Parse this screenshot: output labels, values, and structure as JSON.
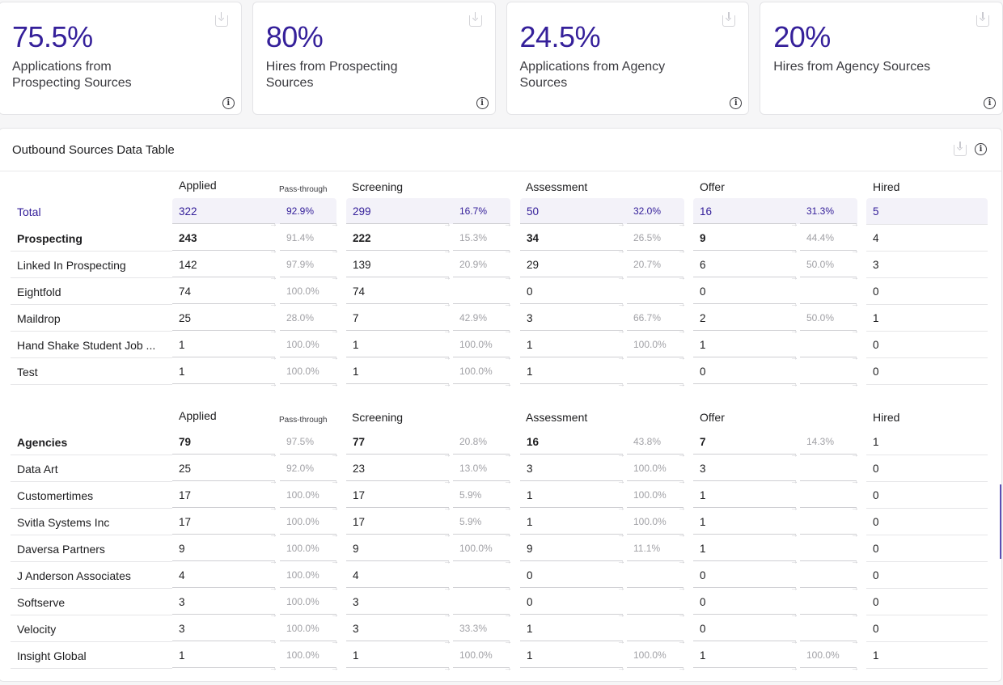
{
  "kpi_cards": [
    {
      "value": "75.5%",
      "label": "Applications from Prospecting Sources",
      "download_icon": "download-icon",
      "info_icon": "info-icon"
    },
    {
      "value": "80%",
      "label": "Hires from Prospecting Sources",
      "download_icon": "download-icon",
      "info_icon": "info-icon"
    },
    {
      "value": "24.5%",
      "label": "Applications from Agency Sources",
      "download_icon": "download-icon",
      "info_icon": "info-icon"
    },
    {
      "value": "20%",
      "label": "Hires from Agency Sources",
      "download_icon": "download-icon",
      "info_icon": "info-icon"
    }
  ],
  "colors": {
    "accent": "#35209a",
    "total_bg": "#f3f2f9",
    "muted": "#a1a1a6"
  },
  "table": {
    "title": "Outbound Sources Data Table",
    "headers": {
      "applied": "Applied",
      "pass_through": "Pass-through",
      "screening": "Screening",
      "assessment": "Assessment",
      "offer": "Offer",
      "hired": "Hired"
    },
    "sections": [
      {
        "rows": [
          {
            "name": "Total",
            "type": "total",
            "applied": "322",
            "p1": "92.9%",
            "screening": "299",
            "p2": "16.7%",
            "assessment": "50",
            "p3": "32.0%",
            "offer": "16",
            "p4": "31.3%",
            "hired": "5"
          },
          {
            "name": "Prospecting",
            "type": "group",
            "applied": "243",
            "p1": "91.4%",
            "screening": "222",
            "p2": "15.3%",
            "assessment": "34",
            "p3": "26.5%",
            "offer": "9",
            "p4": "44.4%",
            "hired": "4"
          },
          {
            "name": "Linked In Prospecting",
            "type": "item",
            "applied": "142",
            "p1": "97.9%",
            "screening": "139",
            "p2": "20.9%",
            "assessment": "29",
            "p3": "20.7%",
            "offer": "6",
            "p4": "50.0%",
            "hired": "3"
          },
          {
            "name": "Eightfold",
            "type": "item",
            "applied": "74",
            "p1": "100.0%",
            "screening": "74",
            "p2": "",
            "assessment": "0",
            "p3": "",
            "offer": "0",
            "p4": "",
            "hired": "0"
          },
          {
            "name": "Maildrop",
            "type": "item",
            "applied": "25",
            "p1": "28.0%",
            "screening": "7",
            "p2": "42.9%",
            "assessment": "3",
            "p3": "66.7%",
            "offer": "2",
            "p4": "50.0%",
            "hired": "1"
          },
          {
            "name": "Hand Shake Student Job ...",
            "type": "item",
            "applied": "1",
            "p1": "100.0%",
            "screening": "1",
            "p2": "100.0%",
            "assessment": "1",
            "p3": "100.0%",
            "offer": "1",
            "p4": "",
            "hired": "0"
          },
          {
            "name": "Test",
            "type": "item",
            "applied": "1",
            "p1": "100.0%",
            "screening": "1",
            "p2": "100.0%",
            "assessment": "1",
            "p3": "",
            "offer": "0",
            "p4": "",
            "hired": "0"
          }
        ]
      },
      {
        "rows": [
          {
            "name": "Agencies",
            "type": "group",
            "applied": "79",
            "p1": "97.5%",
            "screening": "77",
            "p2": "20.8%",
            "assessment": "16",
            "p3": "43.8%",
            "offer": "7",
            "p4": "14.3%",
            "hired": "1"
          },
          {
            "name": "Data Art",
            "type": "item",
            "applied": "25",
            "p1": "92.0%",
            "screening": "23",
            "p2": "13.0%",
            "assessment": "3",
            "p3": "100.0%",
            "offer": "3",
            "p4": "",
            "hired": "0"
          },
          {
            "name": "Customertimes",
            "type": "item",
            "applied": "17",
            "p1": "100.0%",
            "screening": "17",
            "p2": "5.9%",
            "assessment": "1",
            "p3": "100.0%",
            "offer": "1",
            "p4": "",
            "hired": "0"
          },
          {
            "name": "Svitla Systems Inc",
            "type": "item",
            "applied": "17",
            "p1": "100.0%",
            "screening": "17",
            "p2": "5.9%",
            "assessment": "1",
            "p3": "100.0%",
            "offer": "1",
            "p4": "",
            "hired": "0"
          },
          {
            "name": "Daversa Partners",
            "type": "item",
            "applied": "9",
            "p1": "100.0%",
            "screening": "9",
            "p2": "100.0%",
            "assessment": "9",
            "p3": "11.1%",
            "offer": "1",
            "p4": "",
            "hired": "0"
          },
          {
            "name": "J Anderson Associates",
            "type": "item",
            "applied": "4",
            "p1": "100.0%",
            "screening": "4",
            "p2": "",
            "assessment": "0",
            "p3": "",
            "offer": "0",
            "p4": "",
            "hired": "0"
          },
          {
            "name": "Softserve",
            "type": "item",
            "applied": "3",
            "p1": "100.0%",
            "screening": "3",
            "p2": "",
            "assessment": "0",
            "p3": "",
            "offer": "0",
            "p4": "",
            "hired": "0"
          },
          {
            "name": "Velocity",
            "type": "item",
            "applied": "3",
            "p1": "100.0%",
            "screening": "3",
            "p2": "33.3%",
            "assessment": "1",
            "p3": "",
            "offer": "0",
            "p4": "",
            "hired": "0"
          },
          {
            "name": "Insight Global",
            "type": "item",
            "applied": "1",
            "p1": "100.0%",
            "screening": "1",
            "p2": "100.0%",
            "assessment": "1",
            "p3": "100.0%",
            "offer": "1",
            "p4": "100.0%",
            "hired": "1"
          }
        ]
      }
    ]
  }
}
